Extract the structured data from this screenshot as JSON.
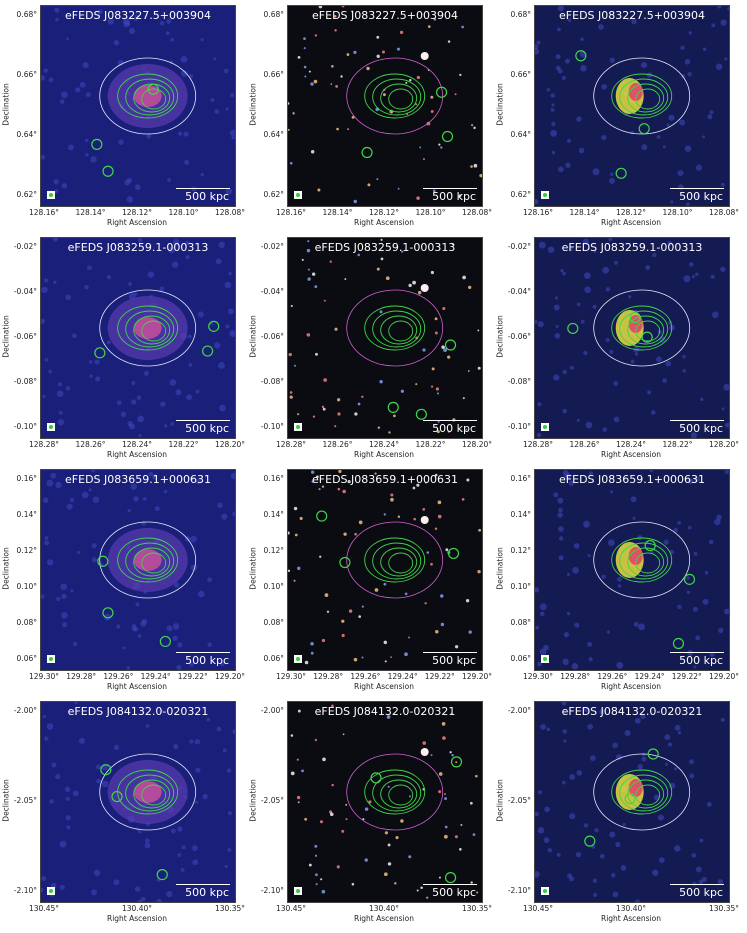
{
  "axis_labels": {
    "x": "Right Ascension",
    "y": "Declination"
  },
  "scale_bar": "500 kpc",
  "rows": [
    {
      "title": "eFEDS J083227.5+003904",
      "yticks": [
        "0.68°",
        "0.66°",
        "0.64°",
        "0.62°"
      ],
      "xticks": [
        "128.16°",
        "128.14°",
        "128.12°",
        "128.10°",
        "128.08°"
      ]
    },
    {
      "title": "eFEDS J083259.1-000313",
      "yticks": [
        "-0.02°",
        "-0.04°",
        "-0.06°",
        "-0.08°",
        "-0.10°"
      ],
      "xticks": [
        "128.28°",
        "128.26°",
        "128.24°",
        "128.22°",
        "128.20°"
      ]
    },
    {
      "title": "eFEDS J083659.1+000631",
      "yticks": [
        "0.16°",
        "0.14°",
        "0.12°",
        "0.10°",
        "0.08°",
        "0.06°"
      ],
      "xticks": [
        "129.30°",
        "129.28°",
        "129.26°",
        "129.24°",
        "129.22°",
        "129.20°"
      ]
    },
    {
      "title": "eFEDS J084132.0-020321",
      "yticks": [
        "-2.00°",
        "-2.05°",
        "-2.10°"
      ],
      "xticks": [
        "130.45°",
        "130.40°",
        "130.35°"
      ]
    }
  ],
  "panel_styles": {
    "xray_background": "#1a1f7a",
    "optical_background": "#0b0b12",
    "radio_background": "#141a52",
    "contour_green": "#3fd64a",
    "contour_white": "#e8e8ff",
    "contour_magenta": "#d060d0"
  }
}
